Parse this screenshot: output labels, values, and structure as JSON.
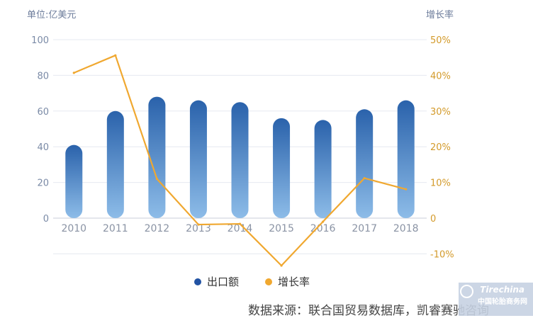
{
  "chart_data": {
    "type": "bar",
    "categories": [
      "2010",
      "2011",
      "2012",
      "2013",
      "2014",
      "2015",
      "2016",
      "2017",
      "2018"
    ],
    "series": [
      {
        "name": "出口额",
        "type": "bar",
        "axis": "left",
        "values": [
          41,
          60,
          68,
          66,
          65,
          56,
          55,
          61,
          66
        ],
        "color": "#2b62ad"
      },
      {
        "name": "增长率",
        "type": "line",
        "axis": "right",
        "values": [
          40.7,
          45.6,
          11.0,
          -1.8,
          -1.6,
          -13.3,
          -1.0,
          11.2,
          8.1
        ],
        "color": "#f0a830"
      }
    ],
    "y_left": {
      "unit": "单位:亿美元",
      "ylim": [
        0,
        100
      ],
      "ticks": [
        0,
        20,
        40,
        60,
        80,
        100
      ]
    },
    "y_right": {
      "unit": "增长率",
      "ylim": [
        -10,
        50
      ],
      "ticks": [
        "-10%",
        "0",
        "10%",
        "20%",
        "30%",
        "40%",
        "50%"
      ]
    },
    "grid": true,
    "legend": "bottom"
  },
  "legend": {
    "bar_label": "出口额",
    "line_label": "增长率"
  },
  "units": {
    "left": "单位:亿美元",
    "right": "增长率"
  },
  "source": "数据来源：联合国贸易数据库，凯睿赛驰咨询",
  "watermark": {
    "logo": "Tirechina",
    "sub": "中国轮胎商务网"
  },
  "colors": {
    "bar_top": "#2a62ab",
    "bar_bottom": "#8dbce8",
    "line": "#f0a830",
    "grid": "#e6e9f0",
    "axis_text": "#7a8aa6"
  }
}
